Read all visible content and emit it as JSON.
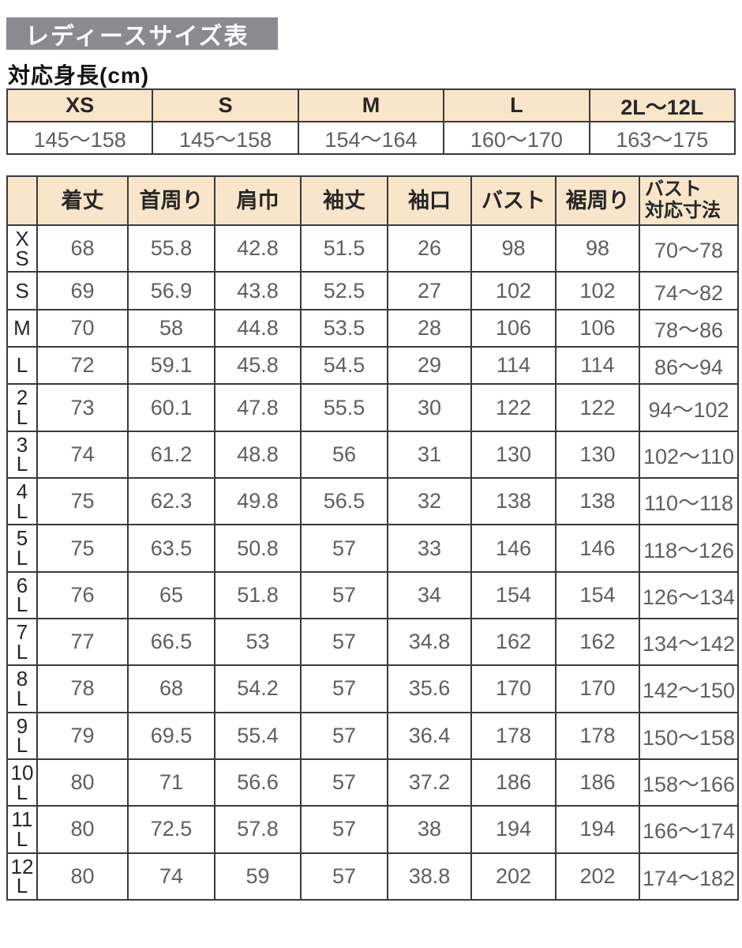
{
  "title": "レディースサイズ表",
  "height_caption": "対応身長(cm)",
  "colors": {
    "title_bar": "#8b8a90",
    "header_beige": "#f9e5ca",
    "border": "#3a3a3a",
    "header_text": "#262626",
    "data_text": "#5f5f5f"
  },
  "height_table": {
    "columns": [
      "XS",
      "S",
      "M",
      "L",
      "2L〜12L"
    ],
    "values": [
      "145〜158",
      "145〜158",
      "154〜164",
      "160〜170",
      "163〜175"
    ]
  },
  "size_table": {
    "corner_label": "",
    "columns": [
      "着丈",
      "首周り",
      "肩巾",
      "袖丈",
      "袖口",
      "バスト",
      "裾周り",
      "バスト\n対応寸法"
    ],
    "rows": [
      {
        "size": "XS",
        "label_display": "X\nS",
        "values": [
          "68",
          "55.8",
          "42.8",
          "51.5",
          "26",
          "98",
          "98",
          "70〜78"
        ]
      },
      {
        "size": "S",
        "label_display": "S",
        "values": [
          "69",
          "56.9",
          "43.8",
          "52.5",
          "27",
          "102",
          "102",
          "74〜82"
        ]
      },
      {
        "size": "M",
        "label_display": "M",
        "values": [
          "70",
          "58",
          "44.8",
          "53.5",
          "28",
          "106",
          "106",
          "78〜86"
        ]
      },
      {
        "size": "L",
        "label_display": "L",
        "values": [
          "72",
          "59.1",
          "45.8",
          "54.5",
          "29",
          "114",
          "114",
          "86〜94"
        ]
      },
      {
        "size": "2L",
        "label_display": "2\nL",
        "values": [
          "73",
          "60.1",
          "47.8",
          "55.5",
          "30",
          "122",
          "122",
          "94〜102"
        ]
      },
      {
        "size": "3L",
        "label_display": "3\nL",
        "values": [
          "74",
          "61.2",
          "48.8",
          "56",
          "31",
          "130",
          "130",
          "102〜110"
        ]
      },
      {
        "size": "4L",
        "label_display": "4\nL",
        "values": [
          "75",
          "62.3",
          "49.8",
          "56.5",
          "32",
          "138",
          "138",
          "110〜118"
        ]
      },
      {
        "size": "5L",
        "label_display": "5\nL",
        "values": [
          "75",
          "63.5",
          "50.8",
          "57",
          "33",
          "146",
          "146",
          "118〜126"
        ]
      },
      {
        "size": "6L",
        "label_display": "6\nL",
        "values": [
          "76",
          "65",
          "51.8",
          "57",
          "34",
          "154",
          "154",
          "126〜134"
        ]
      },
      {
        "size": "7L",
        "label_display": "7\nL",
        "values": [
          "77",
          "66.5",
          "53",
          "57",
          "34.8",
          "162",
          "162",
          "134〜142"
        ]
      },
      {
        "size": "8L",
        "label_display": "8\nL",
        "values": [
          "78",
          "68",
          "54.2",
          "57",
          "35.6",
          "170",
          "170",
          "142〜150"
        ]
      },
      {
        "size": "9L",
        "label_display": "9\nL",
        "values": [
          "79",
          "69.5",
          "55.4",
          "57",
          "36.4",
          "178",
          "178",
          "150〜158"
        ]
      },
      {
        "size": "10L",
        "label_display": "10\nL",
        "values": [
          "80",
          "71",
          "56.6",
          "57",
          "37.2",
          "186",
          "186",
          "158〜166"
        ]
      },
      {
        "size": "11L",
        "label_display": "11\nL",
        "values": [
          "80",
          "72.5",
          "57.8",
          "57",
          "38",
          "194",
          "194",
          "166〜174"
        ]
      },
      {
        "size": "12L",
        "label_display": "12\nL",
        "values": [
          "80",
          "74",
          "59",
          "57",
          "38.8",
          "202",
          "202",
          "174〜182"
        ]
      }
    ]
  }
}
